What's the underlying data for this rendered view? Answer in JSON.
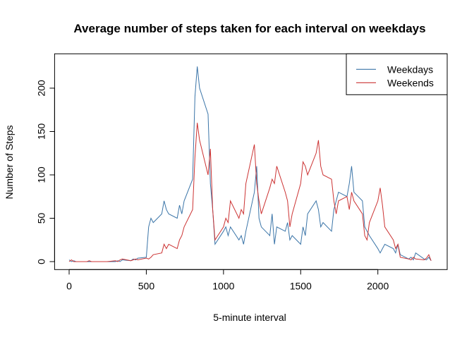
{
  "chart_data": {
    "type": "line",
    "title": "Average number of steps taken for each interval on weekdays",
    "x_label": "5-minute interval",
    "y_label": "Number of Steps",
    "x": [
      0,
      15,
      30,
      45,
      100,
      115,
      130,
      145,
      200,
      215,
      230,
      245,
      300,
      315,
      330,
      345,
      400,
      415,
      430,
      445,
      500,
      515,
      530,
      545,
      600,
      615,
      630,
      645,
      700,
      715,
      730,
      745,
      800,
      815,
      830,
      845,
      900,
      915,
      930,
      945,
      1000,
      1015,
      1030,
      1045,
      1100,
      1115,
      1130,
      1145,
      1200,
      1215,
      1230,
      1245,
      1300,
      1315,
      1330,
      1345,
      1400,
      1415,
      1430,
      1445,
      1500,
      1515,
      1530,
      1545,
      1600,
      1615,
      1630,
      1645,
      1700,
      1715,
      1730,
      1745,
      1800,
      1815,
      1830,
      1845,
      1900,
      1915,
      1930,
      1945,
      2000,
      2015,
      2030,
      2045,
      2100,
      2115,
      2130,
      2145,
      2200,
      2215,
      2230,
      2245,
      2300,
      2315,
      2330,
      2345
    ],
    "series": [
      {
        "name": "Weekdays",
        "color": "#3b75a8",
        "values": [
          2,
          0,
          1,
          0,
          0,
          0,
          0,
          0,
          0,
          0,
          0,
          0,
          0,
          1,
          0,
          2,
          1,
          3,
          2,
          4,
          5,
          40,
          50,
          45,
          55,
          70,
          60,
          55,
          50,
          65,
          55,
          70,
          95,
          190,
          225,
          200,
          170,
          90,
          60,
          20,
          35,
          40,
          30,
          40,
          25,
          30,
          20,
          35,
          80,
          110,
          50,
          40,
          30,
          55,
          20,
          40,
          35,
          45,
          25,
          30,
          20,
          40,
          30,
          55,
          70,
          60,
          40,
          45,
          35,
          60,
          70,
          80,
          75,
          90,
          110,
          80,
          70,
          40,
          35,
          30,
          15,
          10,
          15,
          20,
          15,
          10,
          20,
          8,
          3,
          5,
          2,
          10,
          3,
          2,
          5,
          1
        ]
      },
      {
        "name": "Weekends",
        "color": "#cc3333",
        "values": [
          0,
          2,
          0,
          0,
          0,
          0,
          1,
          0,
          0,
          0,
          0,
          0,
          1,
          0,
          2,
          3,
          1,
          2,
          3,
          2,
          4,
          3,
          5,
          8,
          10,
          20,
          15,
          20,
          15,
          25,
          30,
          40,
          60,
          120,
          160,
          140,
          100,
          130,
          60,
          25,
          40,
          50,
          45,
          70,
          50,
          60,
          55,
          90,
          135,
          90,
          70,
          55,
          85,
          95,
          90,
          110,
          80,
          70,
          40,
          55,
          90,
          115,
          110,
          100,
          125,
          140,
          110,
          100,
          95,
          70,
          55,
          70,
          75,
          60,
          80,
          70,
          55,
          30,
          25,
          45,
          70,
          85,
          65,
          40,
          25,
          15,
          20,
          5,
          3,
          2,
          5,
          3,
          2,
          4,
          8,
          1
        ]
      }
    ],
    "xlim": [
      -94.2,
      2449.2
    ],
    "xticks": [
      0,
      500,
      1000,
      1500,
      2000
    ],
    "ylim": [
      -9.2,
      239.6
    ],
    "yticks": [
      0,
      50,
      100,
      150,
      200
    ],
    "legend": "topright"
  }
}
